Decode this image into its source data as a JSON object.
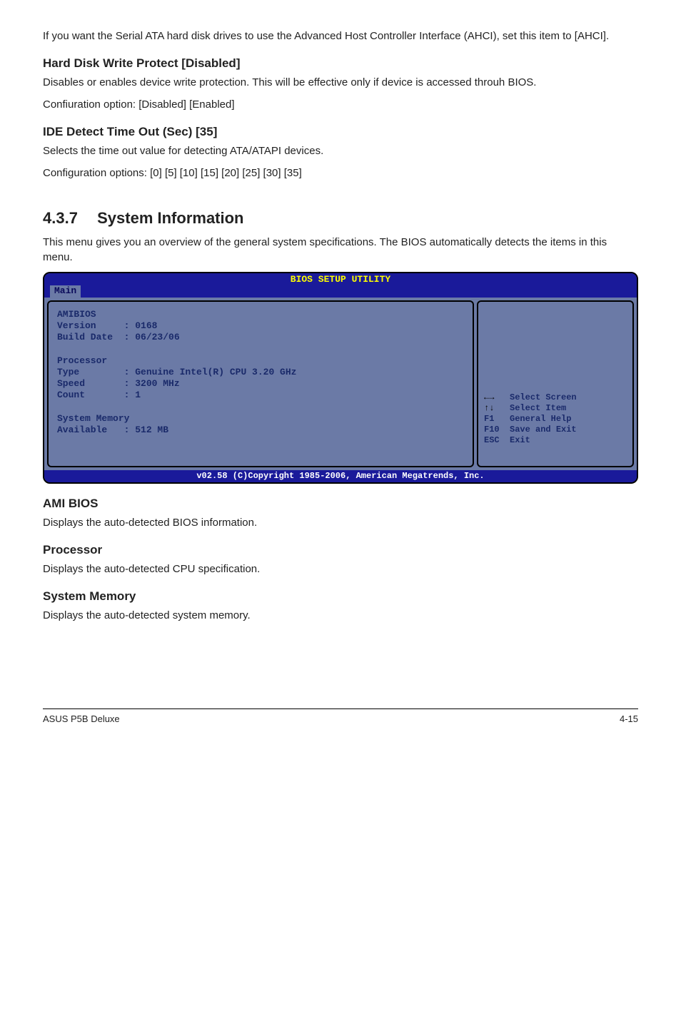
{
  "intro": "If you want the Serial ATA hard disk drives to use the Advanced Host Controller Interface (AHCI), set this item to [AHCI].",
  "hdwp": {
    "title": "Hard Disk Write Protect [Disabled]",
    "p1": "Disables or enables device write protection. This will be effective only if device is accessed throuh BIOS.",
    "p2": "Confiuration option: [Disabled] [Enabled]"
  },
  "ide": {
    "title": "IDE Detect Time Out (Sec) [35]",
    "p1": "Selects the time out value for detecting ATA/ATAPI devices.",
    "p2": "Configuration options: [0] [5] [10] [15] [20] [25] [30] [35]"
  },
  "section": {
    "num": "4.3.7",
    "title": "System Information",
    "p": "This menu gives you an overview of the general system specifications. The BIOS automatically detects the items in this menu."
  },
  "bios": {
    "titlebar": "BIOS SETUP UTILITY",
    "tab": "Main",
    "left": "AMIBIOS\nVersion     : 0168\nBuild Date  : 06/23/06\n\nProcessor\nType        : Genuine Intel(R) CPU 3.20 GHz\nSpeed       : 3200 MHz\nCount       : 1\n\nSystem Memory\nAvailable   : 512 MB",
    "help": {
      "l1a": "←→",
      "l1b": "   Select Screen",
      "l2a": "↑↓",
      "l2b": "   Select Item",
      "l3": "F1   General Help",
      "l4": "F10  Save and Exit",
      "l5": "ESC  Exit"
    },
    "footer": "v02.58 (C)Copyright 1985-2006, American Megatrends, Inc."
  },
  "ami": {
    "title": "AMI BIOS",
    "p": "Displays the auto-detected BIOS information."
  },
  "proc": {
    "title": "Processor",
    "p": "Displays the auto-detected CPU specification."
  },
  "mem": {
    "title": "System Memory",
    "p": "Displays the auto-detected system memory."
  },
  "footer": {
    "left": "ASUS P5B Deluxe",
    "right": "4-15"
  }
}
